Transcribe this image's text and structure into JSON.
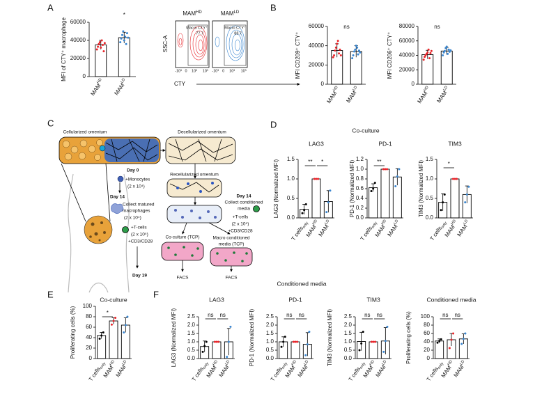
{
  "panel_labels": [
    "A",
    "B",
    "C",
    "D",
    "E",
    "F"
  ],
  "section_headers": [
    "Co-culture",
    "Conditioned media"
  ],
  "flow": {
    "y_label": "SSC-A",
    "x_label": "CTY",
    "plots": [
      {
        "title": {
          "text": "MAM",
          "sup": "HD"
        },
        "gate": "Macro CTY⁺",
        "percent": 77.7
      },
      {
        "title": {
          "text": "MAM",
          "sup": "LD"
        },
        "gate": "Macro CTY⁺",
        "percent": 88.7
      }
    ],
    "x_ticks": [
      "-10³",
      "0",
      "10³",
      "10⁵"
    ]
  },
  "diagram": {
    "labels": [
      "Cellularized omentum",
      "Decellularized omentum",
      "Day 0",
      "+Monocytes",
      "(2 x 10⁴)",
      "Recellularized omentum",
      "Day 14",
      "Collect matured",
      "macrophages",
      "(2 x 10⁴)",
      "+T-cells",
      "(2 x 10⁵)",
      "+CD3/CD28",
      "Day 19",
      "Day 14",
      "Collect conditioned",
      "media",
      "+T-cells",
      "(2 x 10⁵)",
      "+CD3/CD28",
      "Co-culture (TCP)",
      "Macro conditioned",
      "media (TCP)",
      "FACS",
      "FACS"
    ]
  },
  "chart_data": [
    {
      "type": "bar",
      "ylabel": "MFI of CTY⁺ macrophage",
      "categories": [
        {
          "text": "MAM",
          "sup": "HD"
        },
        {
          "text": "MAM",
          "sup": "LD"
        }
      ],
      "values": [
        35000,
        43000
      ],
      "errors": [
        5000,
        6000
      ],
      "points": [
        [
          30000,
          33000,
          36000,
          38000,
          32000,
          40000,
          35000,
          28000,
          37000
        ],
        [
          38000,
          42000,
          46000,
          50000,
          40000,
          44000,
          36000,
          48000,
          43000
        ]
      ],
      "point_colors": [
        "#e8262b",
        "#3a86d0"
      ],
      "ylim": [
        0,
        60000
      ],
      "yticks": [
        0,
        20000,
        40000,
        60000
      ],
      "annotations": [
        "*"
      ]
    },
    {
      "type": "bar",
      "ylabel": "MFI CD209⁺ CTY⁺",
      "categories": [
        {
          "text": "MAM",
          "sup": "HD"
        },
        {
          "text": "MAM",
          "sup": "LD"
        }
      ],
      "values": [
        35000,
        34000
      ],
      "errors": [
        7000,
        6000
      ],
      "points": [
        [
          28000,
          30000,
          35000,
          38000,
          42000,
          45000,
          32000,
          36000,
          30000
        ],
        [
          27000,
          30000,
          34000,
          36000,
          40000,
          38000,
          31000,
          35000,
          33000
        ]
      ],
      "point_colors": [
        "#e8262b",
        "#3a86d0"
      ],
      "ylim": [
        0,
        60000
      ],
      "yticks": [
        0,
        20000,
        40000,
        60000
      ],
      "annotations": [
        "ns"
      ]
    },
    {
      "type": "bar",
      "ylabel": "MFI CD206⁺ CTY⁺",
      "categories": [
        {
          "text": "MAM",
          "sup": "HD"
        },
        {
          "text": "MAM",
          "sup": "LD"
        }
      ],
      "values": [
        41000,
        46000
      ],
      "errors": [
        6000,
        5000
      ],
      "points": [
        [
          34000,
          38000,
          40000,
          42000,
          44000,
          48000,
          36000,
          43000,
          46000
        ],
        [
          40000,
          44000,
          46000,
          50000,
          52000,
          42000,
          48000,
          45000,
          47000
        ]
      ],
      "point_colors": [
        "#e8262b",
        "#3a86d0"
      ],
      "ylim": [
        0,
        80000
      ],
      "yticks": [
        0,
        20000,
        40000,
        60000,
        80000
      ],
      "annotations": [
        "ns"
      ]
    },
    {
      "type": "bar",
      "title": "LAG3",
      "ylabel": "LAG3 (Normalized MFI)",
      "categories": [
        {
          "text": "T cells",
          "sub": "only"
        },
        {
          "text": "MAM",
          "sup": "HD"
        },
        {
          "text": "MAM",
          "sup": "LD"
        }
      ],
      "values": [
        0.22,
        1.0,
        0.42
      ],
      "errors": [
        0.13,
        0,
        0.28
      ],
      "points": [
        [
          0.12,
          0.2,
          0.35
        ],
        [
          1,
          1,
          1
        ],
        [
          0.15,
          0.4,
          0.7
        ]
      ],
      "point_colors": [
        "#000000",
        "#e8262b",
        "#3a86d0"
      ],
      "ylim": [
        0,
        1.5
      ],
      "yticks": [
        {
          "value": 0,
          "label": "0.0"
        },
        0.5,
        {
          "value": 1,
          "label": "1.0"
        },
        1.5
      ],
      "annotations": [
        "**",
        "*"
      ]
    },
    {
      "type": "bar",
      "title": "PD-1",
      "ylabel": "PD-1 (Normalized MFI)",
      "categories": [
        {
          "text": "T cells",
          "sub": "only"
        },
        {
          "text": "MAM",
          "sup": "HD"
        },
        {
          "text": "MAM",
          "sup": "LD"
        }
      ],
      "values": [
        0.62,
        1.0,
        0.84
      ],
      "errors": [
        0.08,
        0,
        0.17
      ],
      "points": [
        [
          0.55,
          0.6,
          0.72
        ],
        [
          1,
          1,
          1
        ],
        [
          0.65,
          0.85,
          1.0
        ]
      ],
      "point_colors": [
        "#000000",
        "#e8262b",
        "#3a86d0"
      ],
      "ylim": [
        0,
        1.2
      ],
      "yticks": [
        {
          "value": 0,
          "label": "0.0"
        },
        0.2,
        0.4,
        0.6,
        0.8,
        {
          "value": 1,
          "label": "1.0"
        },
        1.2
      ],
      "annotations": [
        "**"
      ]
    },
    {
      "type": "bar",
      "title": "TIM3",
      "ylabel": "TIM3 (Normalized MFI)",
      "categories": [
        {
          "text": "T cells",
          "sub": "only"
        },
        {
          "text": "MAM",
          "sup": "HD"
        },
        {
          "text": "MAM",
          "sup": "LD"
        }
      ],
      "values": [
        0.4,
        1.0,
        0.6
      ],
      "errors": [
        0.22,
        0,
        0.22
      ],
      "points": [
        [
          0.2,
          0.4,
          0.6
        ],
        [
          1,
          1,
          1
        ],
        [
          0.4,
          0.6,
          0.8
        ]
      ],
      "point_colors": [
        "#000000",
        "#e8262b",
        "#3a86d0"
      ],
      "ylim": [
        0,
        1.5
      ],
      "yticks": [
        {
          "value": 0,
          "label": "0.0"
        },
        0.5,
        {
          "value": 1,
          "label": "1.0"
        },
        1.5
      ],
      "annotations": [
        "*"
      ]
    },
    {
      "type": "bar",
      "title": "Co-culture",
      "ylabel": "Proliferating cells (%)",
      "categories": [
        {
          "text": "T cells",
          "sub": "only"
        },
        {
          "text": "MAM",
          "sup": "HD"
        },
        {
          "text": "MAM",
          "sup": "LD"
        }
      ],
      "values": [
        44,
        72,
        64
      ],
      "errors": [
        6,
        6,
        14
      ],
      "points": [
        [
          38,
          44,
          50
        ],
        [
          65,
          72,
          78
        ],
        [
          50,
          64,
          80
        ]
      ],
      "point_colors": [
        "#000000",
        "#e8262b",
        "#3a86d0"
      ],
      "ylim": [
        0,
        100
      ],
      "yticks": [
        0,
        20,
        40,
        60,
        80,
        100
      ],
      "annotations": [
        "*"
      ]
    },
    {
      "type": "bar",
      "title": "LAG3",
      "ylabel": "LAG3 (Normalized MFI)",
      "categories": [
        {
          "text": "T cells",
          "sub": "only"
        },
        {
          "text": "MAM",
          "sup": "HD"
        },
        {
          "text": "MAM",
          "sup": "LD"
        }
      ],
      "values": [
        0.72,
        1.0,
        1.0
      ],
      "errors": [
        0.33,
        0,
        0.8
      ],
      "points": [
        [
          0.4,
          0.75,
          1.0
        ],
        [
          1,
          1,
          1
        ],
        [
          0.1,
          1.0,
          1.9
        ]
      ],
      "point_colors": [
        "#000000",
        "#e8262b",
        "#3a86d0"
      ],
      "ylim": [
        0,
        2.5
      ],
      "yticks": [
        {
          "value": 0,
          "label": "0.0"
        },
        0.5,
        {
          "value": 1,
          "label": "1.0"
        },
        1.5,
        {
          "value": 2,
          "label": "2.0"
        },
        2.5
      ],
      "annotations": [
        "ns",
        "ns"
      ]
    },
    {
      "type": "bar",
      "title": "PD-1",
      "ylabel": "PD-1 (Normalized MFI)",
      "categories": [
        {
          "text": "T cells",
          "sub": "only"
        },
        {
          "text": "MAM",
          "sup": "HD"
        },
        {
          "text": "MAM",
          "sup": "LD"
        }
      ],
      "values": [
        1.0,
        1.0,
        0.85
      ],
      "errors": [
        0.3,
        0,
        0.7
      ],
      "points": [
        [
          0.7,
          1.0,
          1.3
        ],
        [
          1,
          1,
          1
        ],
        [
          0.2,
          0.85,
          1.6
        ]
      ],
      "point_colors": [
        "#000000",
        "#e8262b",
        "#3a86d0"
      ],
      "ylim": [
        0,
        2.5
      ],
      "yticks": [
        {
          "value": 0,
          "label": "0.0"
        },
        0.5,
        {
          "value": 1,
          "label": "1.0"
        },
        1.5,
        {
          "value": 2,
          "label": "2.0"
        },
        2.5
      ],
      "annotations": [
        "ns",
        "ns"
      ]
    },
    {
      "type": "bar",
      "title": "TIM3",
      "ylabel": "TIM3 (Normalized MFI)",
      "categories": [
        {
          "text": "T cells",
          "sub": "only"
        },
        {
          "text": "MAM",
          "sup": "HD"
        },
        {
          "text": "MAM",
          "sup": "LD"
        }
      ],
      "values": [
        1.02,
        1.0,
        1.05
      ],
      "errors": [
        0.55,
        0,
        0.8
      ],
      "points": [
        [
          0.5,
          0.9,
          1.6
        ],
        [
          1,
          1,
          1
        ],
        [
          0.4,
          1.05,
          1.9
        ]
      ],
      "point_colors": [
        "#000000",
        "#e8262b",
        "#3a86d0"
      ],
      "ylim": [
        0,
        2.5
      ],
      "yticks": [
        {
          "value": 0,
          "label": "0.0"
        },
        0.5,
        {
          "value": 1,
          "label": "1.0"
        },
        1.5,
        {
          "value": 2,
          "label": "2.0"
        },
        2.5
      ],
      "annotations": [
        "ns",
        "ns"
      ]
    },
    {
      "type": "bar",
      "title": "Conditioned media",
      "ylabel": "Proliferating cells (%)",
      "categories": [
        {
          "text": "T cells",
          "sub": "only"
        },
        {
          "text": "MAM",
          "sup": "HD"
        },
        {
          "text": "MAM",
          "sup": "LD"
        }
      ],
      "values": [
        42,
        45,
        47
      ],
      "errors": [
        5,
        15,
        12
      ],
      "points": [
        [
          38,
          42,
          46
        ],
        [
          25,
          45,
          60
        ],
        [
          35,
          47,
          60
        ]
      ],
      "point_colors": [
        "#000000",
        "#e8262b",
        "#3a86d0"
      ],
      "ylim": [
        0,
        100
      ],
      "yticks": [
        0,
        20,
        40,
        60,
        80,
        100
      ],
      "annotations": [
        "ns",
        "ns"
      ]
    }
  ]
}
